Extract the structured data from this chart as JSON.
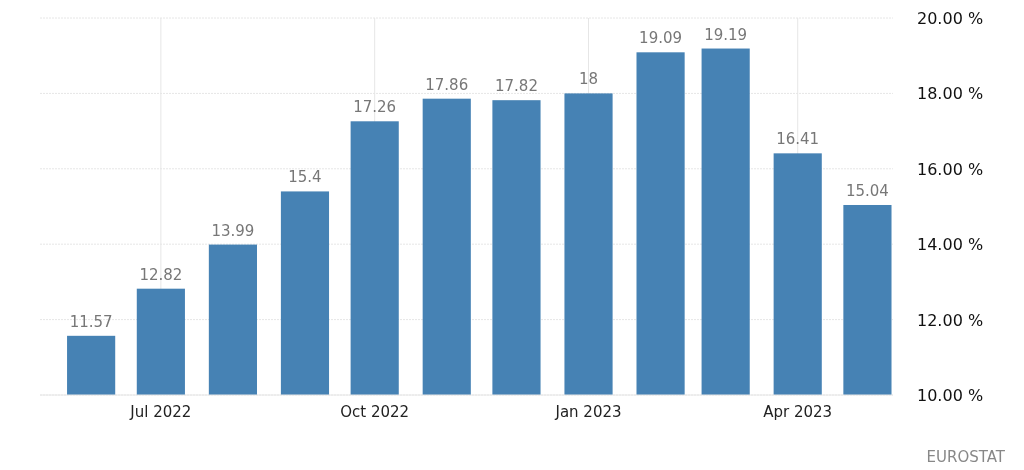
{
  "chart_data": {
    "type": "bar",
    "x": [
      "2022-06",
      "2022-07",
      "2022-08",
      "2022-09",
      "2022-10",
      "2022-11",
      "2022-12",
      "2023-01",
      "2023-02",
      "2023-03",
      "2023-04",
      "2023-05"
    ],
    "values": [
      11.57,
      12.82,
      13.99,
      15.4,
      17.26,
      17.86,
      17.82,
      18,
      19.09,
      19.19,
      16.41,
      15.04
    ],
    "color": "#4682b4",
    "xlim": [
      "2022-05-10",
      "2023-05-12"
    ],
    "xticks": [
      {
        "value": "2022-07",
        "label": "Jul 2022"
      },
      {
        "value": "2022-10",
        "label": "Oct 2022"
      },
      {
        "value": "2023-01",
        "label": "Jan 2023"
      },
      {
        "value": "2023-04",
        "label": "Apr 2023"
      }
    ],
    "ylim": [
      10,
      20
    ],
    "yticks": [
      {
        "value": 10,
        "label": "10.00 %"
      },
      {
        "value": 12,
        "label": "12.00 %"
      },
      {
        "value": 14,
        "label": "14.00 %"
      },
      {
        "value": 16,
        "label": "16.00 %"
      },
      {
        "value": 18,
        "label": "18.00 %"
      },
      {
        "value": 20,
        "label": "20.00 %"
      }
    ],
    "grid": true,
    "data_labels": true,
    "annotations": [
      "EUROSTAT"
    ]
  }
}
